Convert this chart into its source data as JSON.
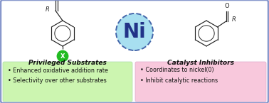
{
  "fig_width": 3.78,
  "fig_height": 1.45,
  "dpi": 100,
  "outer_box_color": "#8898cc",
  "left_box_color": "#ccf5b0",
  "right_box_color": "#f8c8dc",
  "ni_circle_face": "#a8dff0",
  "ni_circle_edge": "#4466aa",
  "ni_text": "Ni",
  "ni_color": "#223388",
  "left_title": "Privileged Substrates",
  "left_bullets": [
    "Enhanced oxidative addition rate",
    "Selectivity over other substrates"
  ],
  "right_title": "Catalyst Inhibitors",
  "right_bullets": [
    "Coordinates to nickel(0)",
    "Inhibit catalytic reactions"
  ],
  "x_dot_color": "#22bb22",
  "x_dot_text": "X",
  "text_color": "#111111",
  "title_fontsize": 6.5,
  "bullet_fontsize": 5.8,
  "ni_fontsize": 20,
  "bond_color": "#222222",
  "bond_lw": 0.85
}
